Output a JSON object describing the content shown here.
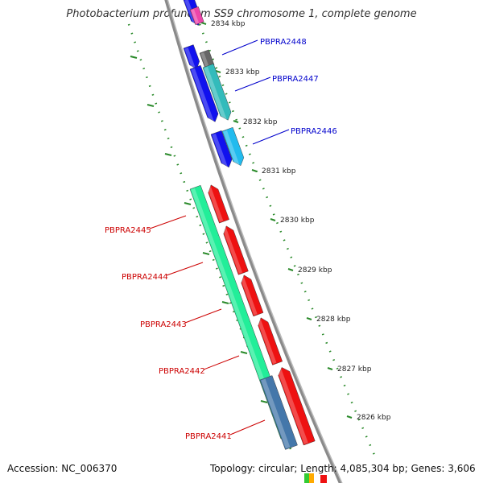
{
  "title": "Photobacterium profundum SS9 chromosome 1, complete genome",
  "accession": "Accession: NC_006370",
  "summary": "Topology: circular; Length: 4,085,304 bp; Genes: 3,606",
  "colors": {
    "backbone": "#8a8a8a",
    "tick": "#2a8a2a",
    "label_forward": "#0000cc",
    "label_reverse": "#cc0000"
  },
  "kbp_labels": [
    "2834 kbp",
    "2833 kbp",
    "2832 kbp",
    "2831 kbp",
    "2830 kbp",
    "2829 kbp",
    "2828 kbp",
    "2827 kbp",
    "2826 kbp"
  ],
  "genes_forward": [
    {
      "label": "PBPRA2448",
      "color": "#666666"
    },
    {
      "label": "PBPRA2447",
      "color": "#33bbbb"
    },
    {
      "label": "PBPRA2446",
      "color": "#22bbee"
    }
  ],
  "genes_reverse": [
    {
      "label": "PBPRA2445",
      "color": "#ee1111"
    },
    {
      "label": "PBPRA2444",
      "color": "#ee1111"
    },
    {
      "label": "PBPRA2443",
      "color": "#ee1111"
    },
    {
      "label": "PBPRA2442",
      "color": "#ee1111"
    },
    {
      "label": "PBPRA2441",
      "color": "#ee1111"
    }
  ],
  "cds_blocks": [
    {
      "color": "#1111ee"
    },
    {
      "color": "#ee44aa"
    },
    {
      "color": "#22ee99"
    },
    {
      "color": "#4477aa"
    }
  ]
}
